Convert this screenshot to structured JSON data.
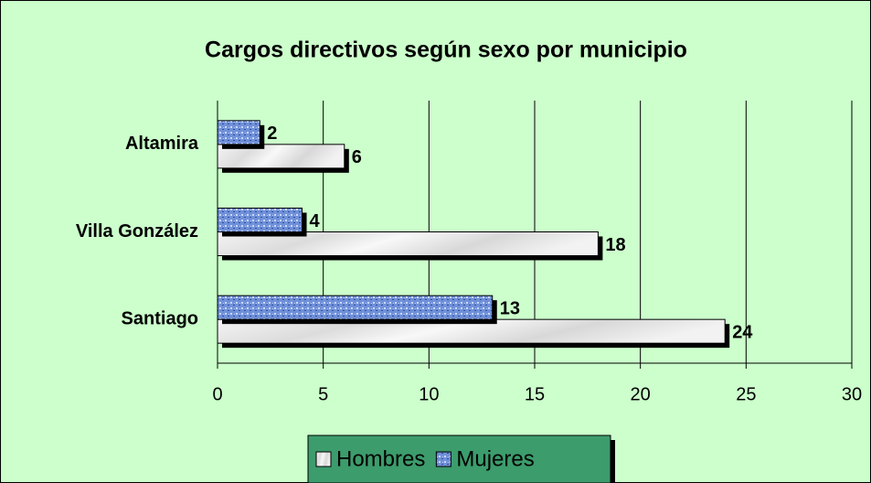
{
  "chart_data": {
    "type": "bar",
    "orientation": "horizontal",
    "title": "Cargos directivos según sexo por municipio",
    "categories": [
      "Altamira",
      "Villa González",
      "Santiago"
    ],
    "series": [
      {
        "name": "Hombres",
        "color": "#e8e8e8",
        "values": [
          6,
          18,
          24
        ]
      },
      {
        "name": "Mujeres",
        "color": "#7090d8",
        "values": [
          2,
          4,
          13
        ]
      }
    ],
    "xlim": [
      0,
      30
    ],
    "xticks": [
      0,
      5,
      10,
      15,
      20,
      25,
      30
    ],
    "grid": true,
    "legend": "bottom"
  }
}
